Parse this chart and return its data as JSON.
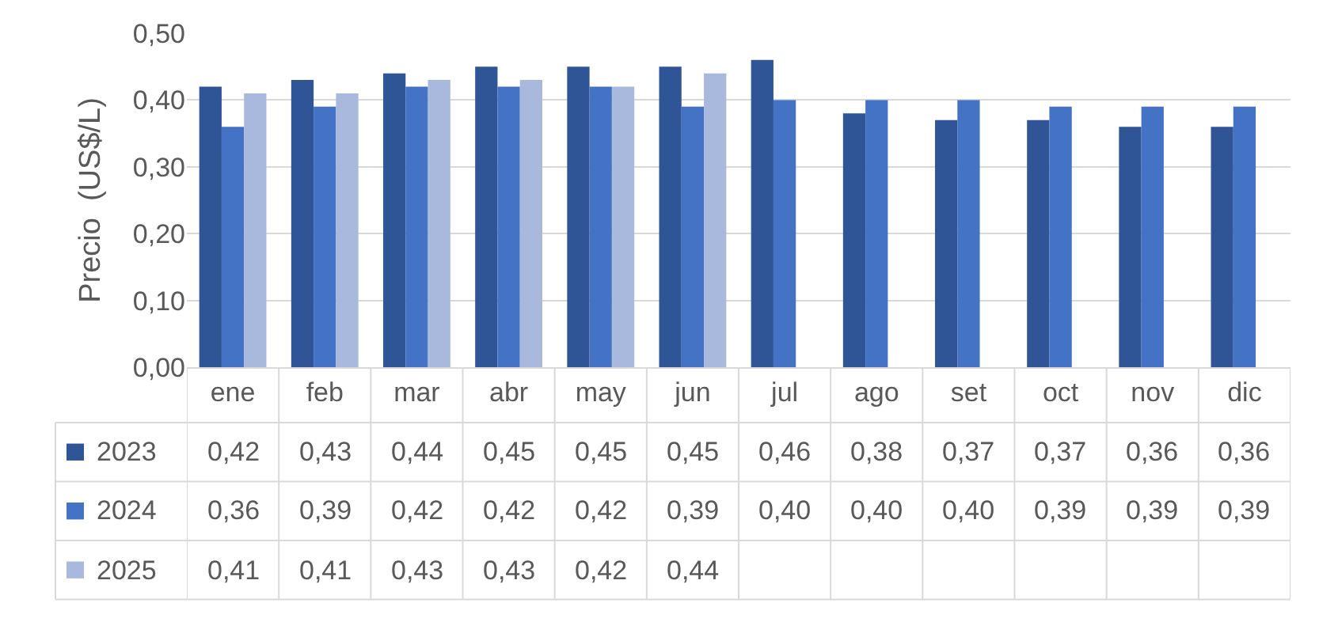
{
  "chart_data": {
    "type": "bar",
    "ylabel": "Precio  (US$/L)",
    "categories": [
      "ene",
      "feb",
      "mar",
      "abr",
      "may",
      "jun",
      "jul",
      "ago",
      "set",
      "oct",
      "nov",
      "dic"
    ],
    "series": [
      {
        "name": "2023",
        "color": "#2f5597",
        "values": [
          0.42,
          0.43,
          0.44,
          0.45,
          0.45,
          0.45,
          0.46,
          0.38,
          0.37,
          0.37,
          0.36,
          0.36
        ],
        "value_labels": [
          "0,42",
          "0,43",
          "0,44",
          "0,45",
          "0,45",
          "0,45",
          "0,46",
          "0,38",
          "0,37",
          "0,37",
          "0,36",
          "0,36"
        ]
      },
      {
        "name": "2024",
        "color": "#4472c4",
        "values": [
          0.36,
          0.39,
          0.42,
          0.42,
          0.42,
          0.39,
          0.4,
          0.4,
          0.4,
          0.39,
          0.39,
          0.39
        ],
        "value_labels": [
          "0,36",
          "0,39",
          "0,42",
          "0,42",
          "0,42",
          "0,39",
          "0,40",
          "0,40",
          "0,40",
          "0,39",
          "0,39",
          "0,39"
        ]
      },
      {
        "name": "2025",
        "color": "#a9b8dd",
        "values": [
          0.41,
          0.41,
          0.43,
          0.43,
          0.42,
          0.44,
          null,
          null,
          null,
          null,
          null,
          null
        ],
        "value_labels": [
          "0,41",
          "0,41",
          "0,43",
          "0,43",
          "0,42",
          "0,44",
          null,
          null,
          null,
          null,
          null,
          null
        ]
      }
    ],
    "ylim": [
      0,
      0.5
    ],
    "yticks": [
      {
        "value": 0,
        "label": "0,00"
      },
      {
        "value": 0.1,
        "label": "0,10"
      },
      {
        "value": 0.2,
        "label": "0,20"
      },
      {
        "value": 0.3,
        "label": "0,30"
      },
      {
        "value": 0.4,
        "label": "0,40"
      },
      {
        "value": 0.5,
        "label": "0,50"
      }
    ],
    "grid": "y",
    "legend": "bottom left"
  }
}
